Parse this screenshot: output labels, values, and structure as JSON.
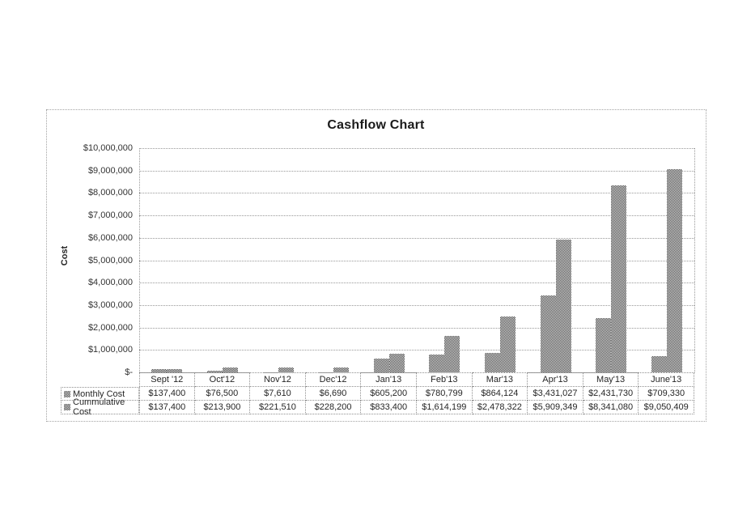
{
  "chart_data": {
    "type": "bar",
    "title": "Cashflow Chart",
    "ylabel": "Cost",
    "categories": [
      "Sept '12",
      "Oct'12",
      "Nov'12",
      "Dec'12",
      "Jan'13",
      "Feb'13",
      "Mar'13",
      "Apr'13",
      "May'13",
      "June'13"
    ],
    "series": [
      {
        "name": "Monthly Cost",
        "values": [
          137400,
          76500,
          7610,
          6690,
          605200,
          780799,
          864124,
          3431027,
          2431730,
          709330
        ],
        "formatted": [
          "$137,400",
          "$76,500",
          "$7,610",
          "$6,690",
          "$605,200",
          "$780,799",
          "$864,124",
          "$3,431,027",
          "$2,431,730",
          "$709,330"
        ]
      },
      {
        "name": "Cummulative Cost",
        "values": [
          137400,
          213900,
          221510,
          228200,
          833400,
          1614199,
          2478322,
          5909349,
          8341080,
          9050409
        ],
        "formatted": [
          "$137,400",
          "$213,900",
          "$221,510",
          "$228,200",
          "$833,400",
          "$1,614,199",
          "$2,478,322",
          "$5,909,349",
          "$8,341,080",
          "$9,050,409"
        ]
      }
    ],
    "ylim": [
      0,
      10000000
    ],
    "ytick_labels": [
      "$-",
      "$1,000,000",
      "$2,000,000",
      "$3,000,000",
      "$4,000,000",
      "$5,000,000",
      "$6,000,000",
      "$7,000,000",
      "$8,000,000",
      "$9,000,000",
      "$10,000,000"
    ],
    "grid": true,
    "legend_position": "data-table",
    "bar_pattern": "gray-checker-dither",
    "colors": {
      "bar_dark": "#4a4a4a",
      "bar_light": "#e3e3e3",
      "border": "#8f8f8f",
      "text": "#262626"
    }
  }
}
